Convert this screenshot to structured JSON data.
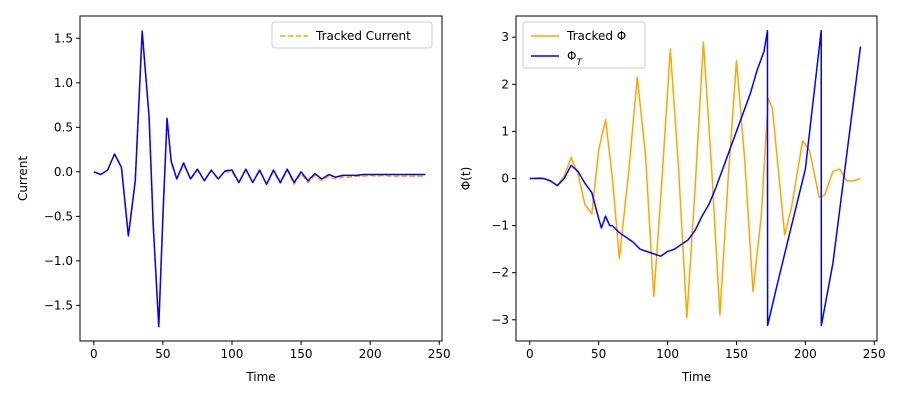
{
  "colors": {
    "orange": "#ffa500",
    "blue": "#0000ff"
  },
  "chart_data": [
    {
      "type": "line",
      "xlabel": "Time",
      "ylabel": "Current",
      "xlim": [
        -10,
        252
      ],
      "ylim": [
        -1.9,
        1.75
      ],
      "xticks": [
        0,
        50,
        100,
        150,
        200,
        250
      ],
      "yticks": [
        -1.5,
        -1.0,
        -0.5,
        0.0,
        0.5,
        1.0,
        1.5
      ],
      "ytick_labels": [
        "−1.5",
        "−1.0",
        "−0.5",
        "0.0",
        "0.5",
        "1.0",
        "1.5"
      ],
      "legend": {
        "placement": "top-right",
        "entries": [
          "Tracked Current"
        ]
      },
      "series": [
        {
          "name": "Tracked Current",
          "style": "dashed",
          "color": "#ffa500",
          "x": [
            0,
            5,
            10,
            15,
            20,
            25,
            30,
            35,
            40,
            43,
            47,
            50,
            53,
            56,
            60,
            65,
            70,
            75,
            80,
            85,
            90,
            95,
            100,
            105,
            110,
            115,
            120,
            125,
            130,
            135,
            140,
            145,
            150,
            155,
            160,
            165,
            170,
            175,
            180,
            185,
            190,
            195,
            200,
            205,
            210,
            215,
            220,
            225,
            230,
            235,
            240
          ],
          "y": [
            0.0,
            -0.03,
            0.02,
            0.2,
            0.05,
            -0.72,
            -0.1,
            1.55,
            0.6,
            -0.6,
            -1.72,
            -0.5,
            0.58,
            0.1,
            -0.08,
            0.08,
            -0.08,
            0.02,
            -0.1,
            0.01,
            -0.08,
            0.0,
            0.0,
            -0.12,
            0.02,
            -0.12,
            0.01,
            -0.14,
            0.0,
            -0.13,
            0.02,
            -0.14,
            -0.02,
            -0.12,
            -0.04,
            -0.1,
            -0.05,
            -0.08,
            -0.06,
            -0.06,
            -0.05,
            -0.05,
            -0.04,
            -0.05,
            -0.04,
            -0.05,
            -0.05,
            -0.05,
            -0.05,
            -0.05,
            -0.05
          ]
        },
        {
          "name": "",
          "style": "solid",
          "color": "#0000ff",
          "x": [
            0,
            5,
            10,
            15,
            20,
            25,
            30,
            35,
            40,
            43,
            47,
            50,
            53,
            56,
            60,
            65,
            70,
            75,
            80,
            85,
            90,
            95,
            100,
            105,
            110,
            115,
            120,
            125,
            130,
            135,
            140,
            145,
            150,
            155,
            160,
            165,
            170,
            175,
            180,
            185,
            190,
            195,
            200,
            205,
            210,
            215,
            220,
            225,
            230,
            235,
            240
          ],
          "y": [
            0.0,
            -0.03,
            0.02,
            0.2,
            0.05,
            -0.72,
            -0.1,
            1.58,
            0.62,
            -0.6,
            -1.74,
            -0.5,
            0.6,
            0.12,
            -0.08,
            0.1,
            -0.08,
            0.03,
            -0.1,
            0.02,
            -0.08,
            0.01,
            0.02,
            -0.12,
            0.03,
            -0.12,
            0.02,
            -0.14,
            0.02,
            -0.12,
            0.03,
            -0.12,
            0.0,
            -0.1,
            -0.02,
            -0.08,
            -0.03,
            -0.06,
            -0.04,
            -0.04,
            -0.04,
            -0.03,
            -0.03,
            -0.03,
            -0.03,
            -0.03,
            -0.03,
            -0.03,
            -0.03,
            -0.03,
            -0.03
          ]
        }
      ]
    },
    {
      "type": "line",
      "xlabel": "Time",
      "ylabel": "Φ(t)",
      "xlim": [
        -10,
        252
      ],
      "ylim": [
        -3.45,
        3.45
      ],
      "xticks": [
        0,
        50,
        100,
        150,
        200,
        250
      ],
      "yticks": [
        -3,
        -2,
        -1,
        0,
        1,
        2,
        3
      ],
      "ytick_labels": [
        "−3",
        "−2",
        "−1",
        "0",
        "1",
        "2",
        "3"
      ],
      "legend": {
        "placement": "top-left",
        "entries": [
          "Tracked Φ",
          "Φ_T"
        ]
      },
      "series": [
        {
          "name": "Tracked Φ",
          "style": "solid",
          "color": "#ffa500",
          "x": [
            0,
            8,
            15,
            20,
            25,
            30,
            35,
            40,
            45,
            50,
            55,
            60,
            65,
            72,
            78,
            84,
            90,
            96,
            102,
            108,
            114,
            120,
            126,
            132,
            138,
            144,
            150,
            156,
            162,
            168,
            173,
            176,
            185,
            190,
            198,
            203,
            210,
            214,
            220,
            225,
            230,
            235,
            240
          ],
          "y": [
            0.0,
            0.02,
            -0.05,
            -0.15,
            0.05,
            0.45,
            0.1,
            -0.55,
            -0.75,
            0.6,
            1.25,
            0.0,
            -1.7,
            0.2,
            2.15,
            0.5,
            -2.5,
            0.0,
            2.75,
            0.2,
            -2.95,
            -0.2,
            2.9,
            0.2,
            -2.9,
            0.0,
            2.5,
            0.4,
            -2.4,
            -0.8,
            1.7,
            1.5,
            -1.2,
            -0.6,
            0.8,
            0.6,
            -0.4,
            -0.35,
            0.15,
            0.2,
            -0.05,
            -0.05,
            0.0
          ]
        },
        {
          "name": "Φ_T",
          "style": "solid",
          "color": "#0000ff",
          "x": [
            0,
            10,
            15,
            20,
            25,
            30,
            35,
            40,
            45,
            50,
            52,
            55,
            58,
            60,
            65,
            70,
            75,
            80,
            85,
            90,
            95,
            100,
            105,
            110,
            115,
            120,
            125,
            130,
            135,
            140,
            145,
            150,
            155,
            160,
            165,
            170,
            172.5,
            172.6,
            180,
            190,
            200,
            211.5,
            211.6,
            220,
            230,
            240
          ],
          "y": [
            0.0,
            0.0,
            -0.05,
            -0.15,
            0.0,
            0.28,
            0.15,
            -0.1,
            -0.3,
            -0.85,
            -1.05,
            -0.8,
            -1.0,
            -1.0,
            -1.15,
            -1.25,
            -1.35,
            -1.5,
            -1.55,
            -1.6,
            -1.65,
            -1.55,
            -1.5,
            -1.4,
            -1.3,
            -1.1,
            -0.8,
            -0.55,
            -0.2,
            0.2,
            0.6,
            1.0,
            1.4,
            1.8,
            2.3,
            2.7,
            3.14,
            -3.12,
            -2.2,
            -1.0,
            0.2,
            3.14,
            -3.12,
            -1.8,
            0.5,
            2.8
          ]
        }
      ]
    }
  ]
}
